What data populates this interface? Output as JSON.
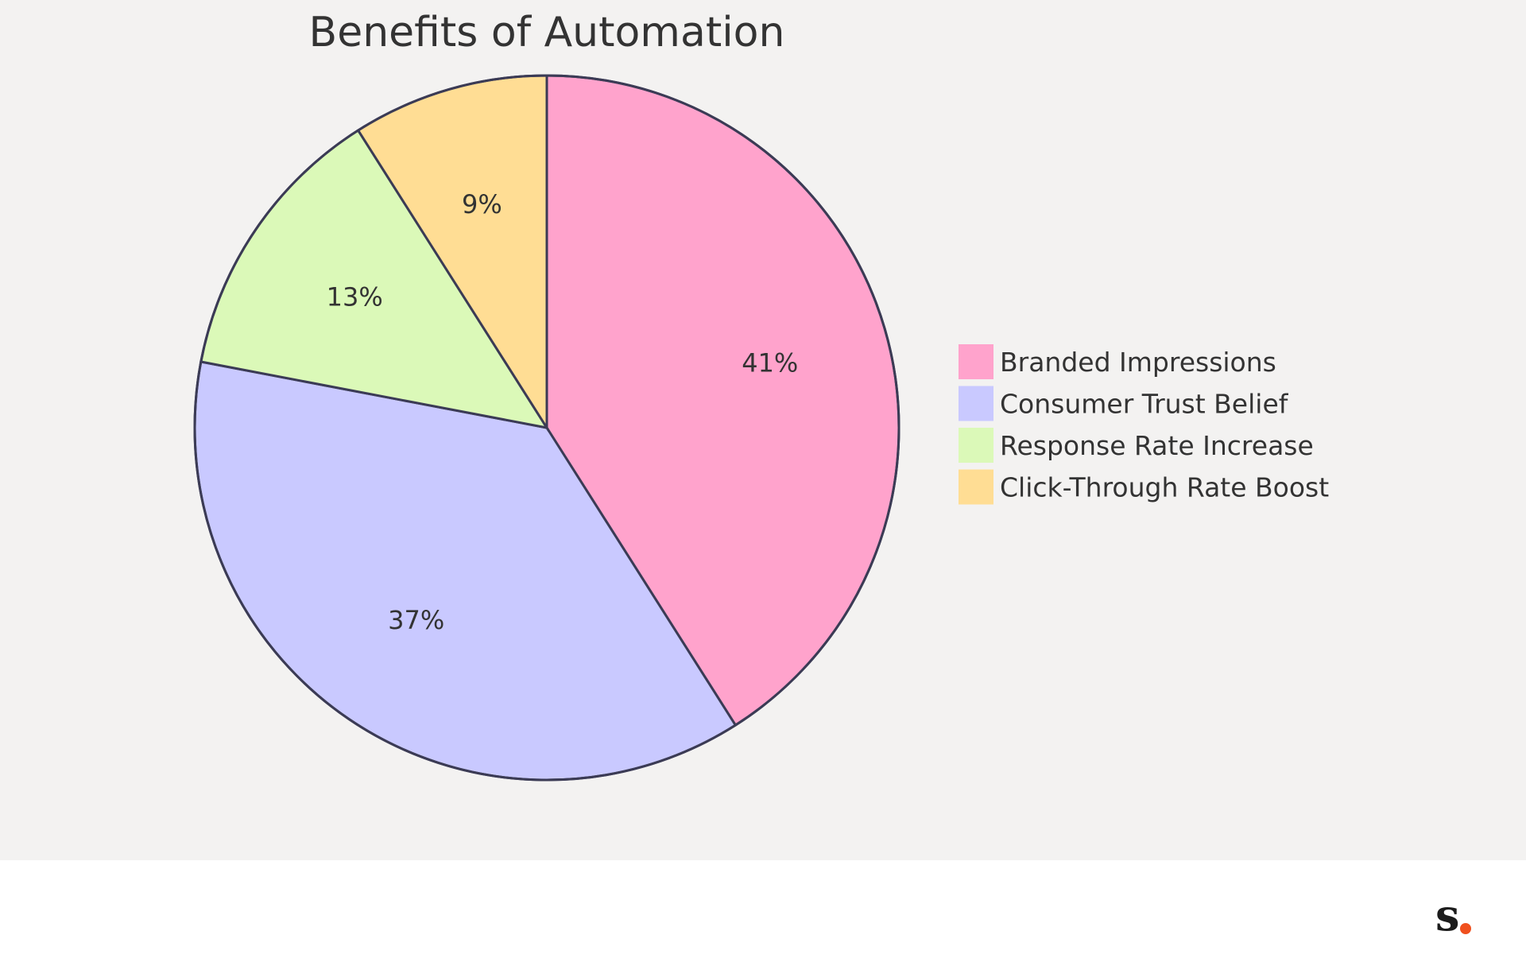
{
  "chart_data": {
    "type": "pie",
    "title": "Benefits of Automation",
    "slices": [
      {
        "label": "Branded Impressions",
        "value": 41,
        "display": "41%",
        "color": "#ffa3cc"
      },
      {
        "label": "Consumer Trust Belief",
        "value": 37,
        "display": "37%",
        "color": "#c9c9ff"
      },
      {
        "label": "Response Rate Increase",
        "value": 13,
        "display": "13%",
        "color": "#dbf9b8"
      },
      {
        "label": "Click-Through Rate Boost",
        "value": 9,
        "display": "9%",
        "color": "#ffdd94"
      }
    ],
    "start_angle_deg": 0,
    "direction": "clockwise",
    "legend_position": "right",
    "stroke_color": "#3b3b55"
  },
  "brand": {
    "logo_letter": "s",
    "logo_dot_color": "#f0501e"
  }
}
